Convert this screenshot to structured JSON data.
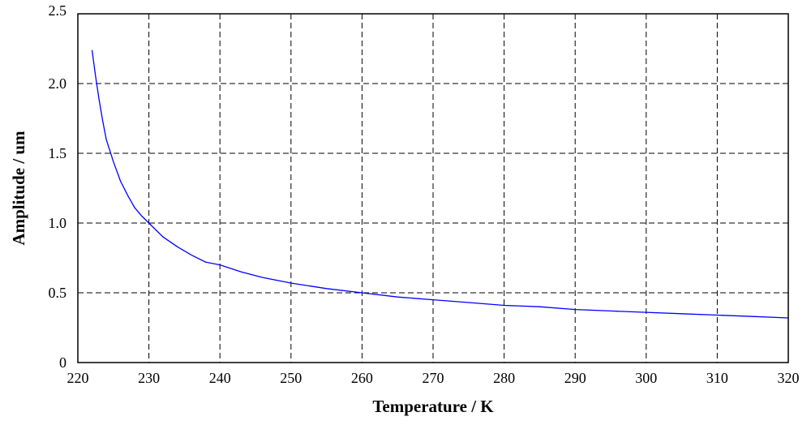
{
  "chart_data": {
    "type": "line",
    "title": "",
    "xlabel": "Temperature / K",
    "ylabel": "Amplitude / um",
    "xlim": [
      220,
      320
    ],
    "ylim": [
      0,
      2.5
    ],
    "x_ticks": [
      220,
      230,
      240,
      250,
      260,
      270,
      280,
      290,
      300,
      310,
      320
    ],
    "y_ticks": [
      0,
      0.5,
      1.0,
      1.5,
      2.0,
      2.5
    ],
    "x_tick_labels": [
      "220",
      "230",
      "240",
      "250",
      "260",
      "270",
      "280",
      "290",
      "300",
      "310",
      "320"
    ],
    "y_tick_labels": [
      "0",
      "0.5",
      "1.0",
      "1.5",
      "2.0",
      "2.5"
    ],
    "grid": true,
    "legend": "none",
    "series": [
      {
        "color": "#0000ff",
        "x": [
          222,
          222.5,
          223,
          223.5,
          224,
          225,
          226,
          227,
          228,
          229,
          230,
          232,
          234,
          236,
          238,
          240,
          243,
          246,
          250,
          255,
          260,
          265,
          270,
          275,
          280,
          285,
          290,
          295,
          300,
          305,
          310,
          315,
          320
        ],
        "y": [
          2.24,
          2.05,
          1.88,
          1.73,
          1.6,
          1.44,
          1.3,
          1.2,
          1.11,
          1.05,
          1.0,
          0.9,
          0.83,
          0.77,
          0.72,
          0.7,
          0.65,
          0.61,
          0.57,
          0.53,
          0.5,
          0.47,
          0.45,
          0.43,
          0.41,
          0.4,
          0.38,
          0.37,
          0.36,
          0.35,
          0.34,
          0.33,
          0.32
        ]
      }
    ]
  }
}
